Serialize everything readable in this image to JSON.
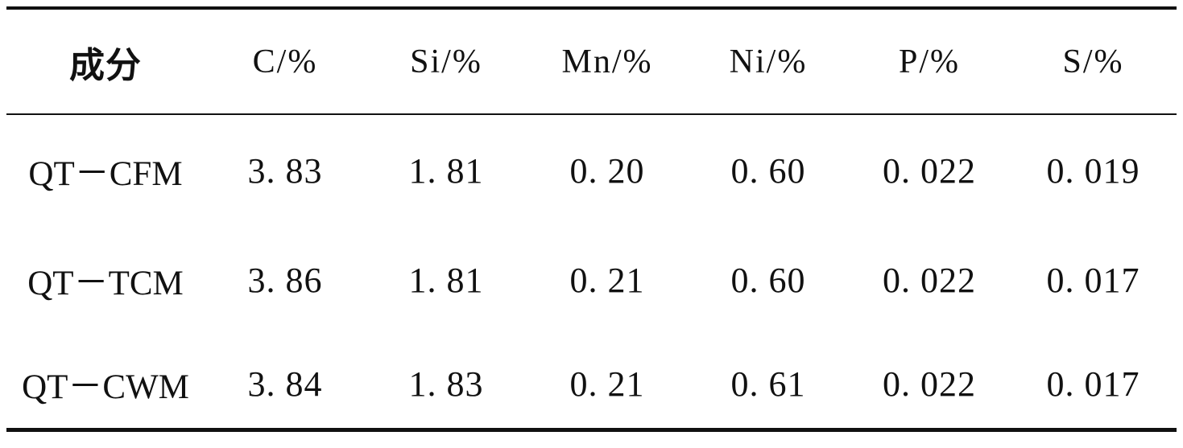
{
  "table": {
    "headers": [
      "成分",
      "C/%",
      "Si/%",
      "Mn/%",
      "Ni/%",
      "P/%",
      "S/%"
    ],
    "rows": [
      [
        "QT－CFM",
        "3. 83",
        "1. 81",
        "0. 20",
        "0. 60",
        "0. 022",
        "0. 019"
      ],
      [
        "QT－TCM",
        "3. 86",
        "1. 81",
        "0. 21",
        "0. 60",
        "0. 022",
        "0. 017"
      ],
      [
        "QT－CWM",
        "3. 84",
        "1. 83",
        "0. 21",
        "0. 61",
        "0. 022",
        "0. 017"
      ]
    ]
  }
}
